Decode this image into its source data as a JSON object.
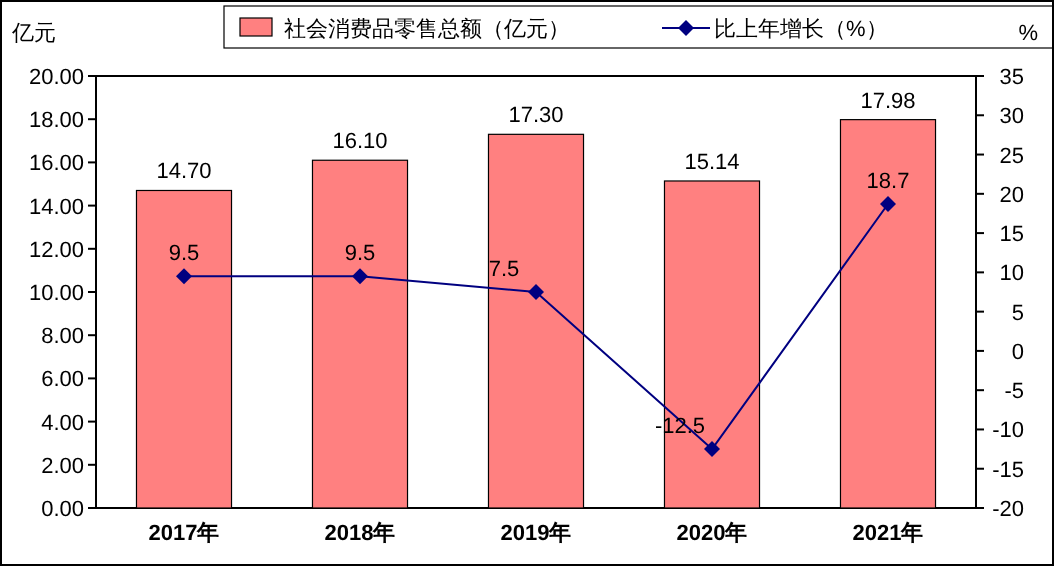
{
  "chart_data": {
    "type": "bar",
    "ylabel": "亿元",
    "y2label": "%",
    "categories": [
      "2017年",
      "2018年",
      "2019年",
      "2020年",
      "2021年"
    ],
    "series": [
      {
        "name": "社会消费品零售总额（亿元）",
        "color": "#ff8080",
        "values": [
          14.7,
          16.1,
          17.3,
          15.14,
          17.98
        ],
        "value_labels": [
          "14.70",
          "16.10",
          "17.30",
          "15.14",
          "17.98"
        ]
      },
      {
        "name": "比上年增长（%）",
        "type": "line",
        "axis": "y2",
        "color": "#000080",
        "marker": "diamond",
        "values": [
          9.5,
          9.5,
          7.5,
          -12.5,
          18.7
        ],
        "value_labels": [
          "9.5",
          "9.5",
          "7.5",
          "-12.5",
          "18.7"
        ]
      }
    ],
    "ylim": [
      0,
      20
    ],
    "yticks": [
      {
        "value": 0,
        "label": "0.00"
      },
      {
        "value": 2,
        "label": "2.00"
      },
      {
        "value": 4,
        "label": "4.00"
      },
      {
        "value": 6,
        "label": "6.00"
      },
      {
        "value": 8,
        "label": "8.00"
      },
      {
        "value": 10,
        "label": "10.00"
      },
      {
        "value": 12,
        "label": "12.00"
      },
      {
        "value": 14,
        "label": "14.00"
      },
      {
        "value": 16,
        "label": "16.00"
      },
      {
        "value": 18,
        "label": "18.00"
      },
      {
        "value": 20,
        "label": "20.00"
      }
    ],
    "y2lim": [
      -20,
      35
    ],
    "y2ticks": [
      -20,
      -15,
      -10,
      -5,
      0,
      5,
      10,
      15,
      20,
      25,
      30,
      35
    ],
    "legend": "top",
    "grid": false
  }
}
